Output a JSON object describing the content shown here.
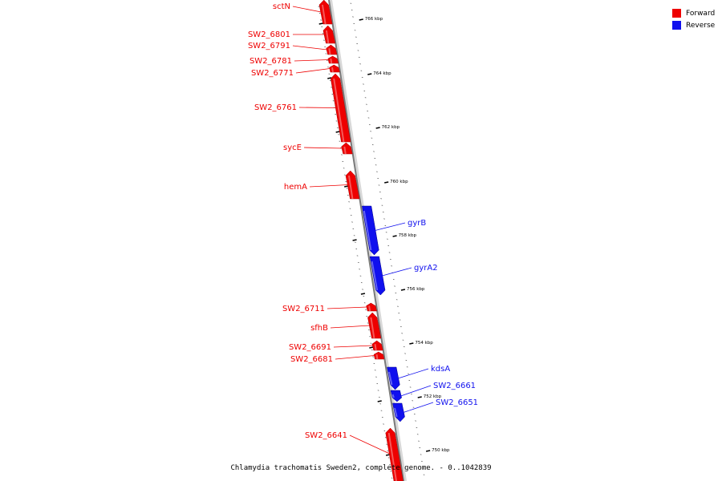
{
  "caption": "Chlamydia trachomatis Sweden2, complete genome. - 0..1042839",
  "colors": {
    "forward": "#ee0000",
    "reverse": "#1010ee"
  },
  "legend": [
    {
      "label": "Forward",
      "color": "#ee0000"
    },
    {
      "label": "Reverse",
      "color": "#1010ee"
    }
  ],
  "scale": {
    "ticks": [
      {
        "label": "766 kbp"
      },
      {
        "label": "764 kbp"
      },
      {
        "label": "762 kbp"
      },
      {
        "label": "760 kbp"
      },
      {
        "label": "758 kbp"
      },
      {
        "label": "756 kbp"
      },
      {
        "label": "754 kbp"
      },
      {
        "label": "752 kbp"
      },
      {
        "label": "750 kbp"
      }
    ]
  },
  "genes": [
    {
      "name": "sctN",
      "strand": "forward"
    },
    {
      "name": "SW2_6801",
      "strand": "forward"
    },
    {
      "name": "SW2_6791",
      "strand": "forward"
    },
    {
      "name": "SW2_6781",
      "strand": "forward"
    },
    {
      "name": "SW2_6771",
      "strand": "forward"
    },
    {
      "name": "SW2_6761",
      "strand": "forward"
    },
    {
      "name": "sycE",
      "strand": "forward"
    },
    {
      "name": "hemA",
      "strand": "forward"
    },
    {
      "name": "gyrB",
      "strand": "reverse"
    },
    {
      "name": "gyrA2",
      "strand": "reverse"
    },
    {
      "name": "SW2_6711",
      "strand": "forward"
    },
    {
      "name": "sfhB",
      "strand": "forward"
    },
    {
      "name": "SW2_6691",
      "strand": "forward"
    },
    {
      "name": "SW2_6681",
      "strand": "forward"
    },
    {
      "name": "kdsA",
      "strand": "reverse"
    },
    {
      "name": "SW2_6661",
      "strand": "reverse"
    },
    {
      "name": "SW2_6651",
      "strand": "reverse"
    },
    {
      "name": "SW2_6641",
      "strand": "forward"
    }
  ]
}
